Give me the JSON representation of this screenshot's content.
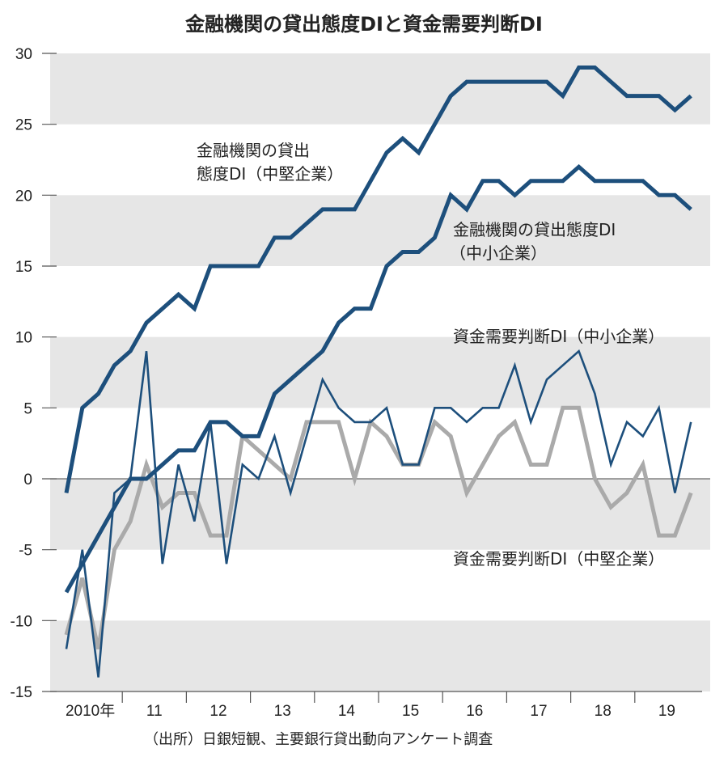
{
  "chart_data": {
    "type": "line",
    "title": "金融機関の貸出態度DIと資金需要判断DI",
    "source": "（出所）日銀短観、主要銀行貸出動向アンケート調査",
    "ylim": [
      -15,
      30
    ],
    "yticks": [
      "30",
      "25",
      "20",
      "15",
      "10",
      "5",
      "0",
      "-5",
      "-10",
      "-15"
    ],
    "ytick_values": [
      30,
      25,
      20,
      15,
      10,
      5,
      0,
      -5,
      -10,
      -15
    ],
    "xticks": [
      "2010年",
      "11",
      "12",
      "13",
      "14",
      "15",
      "16",
      "17",
      "18",
      "19"
    ],
    "x_unit": "quarter, 2010Q1–2019Q4",
    "grid": "alternating horizontal bands",
    "colors": {
      "blue": "#1d4f7c",
      "gray": "#aaaaaa",
      "band": "#e6e6e6"
    },
    "series": [
      {
        "name": "金融機関の貸出態度DI（中堅企業）",
        "label_lines": [
          "金融機関の貸出",
          "態度DI（中堅企業）"
        ],
        "color": "#1d4f7c",
        "weight": "thick",
        "values": [
          -1,
          5,
          6,
          8,
          9,
          11,
          12,
          13,
          12,
          15,
          15,
          15,
          15,
          17,
          17,
          18,
          19,
          19,
          19,
          21,
          23,
          24,
          23,
          25,
          27,
          28,
          28,
          28,
          28,
          28,
          28,
          27,
          29,
          29,
          28,
          27,
          27,
          27,
          26,
          27
        ]
      },
      {
        "name": "金融機関の貸出態度DI（中小企業）",
        "label_lines": [
          "金融機関の貸出態度DI",
          "（中小企業）"
        ],
        "color": "#1d4f7c",
        "weight": "thick",
        "values": [
          -8,
          -6,
          -4,
          -2,
          0,
          0,
          1,
          2,
          2,
          4,
          4,
          3,
          3,
          6,
          7,
          8,
          9,
          11,
          12,
          12,
          15,
          16,
          16,
          17,
          20,
          19,
          21,
          21,
          20,
          21,
          21,
          21,
          22,
          21,
          21,
          21,
          21,
          20,
          20,
          19
        ]
      },
      {
        "name": "資金需要判断DI（中小企業）",
        "label_lines": [
          "資金需要判断DI（中小企業）"
        ],
        "color": "#1d4f7c",
        "weight": "thin",
        "values": [
          -12,
          -5,
          -14,
          -1,
          0,
          9,
          -6,
          1,
          -3,
          4,
          -6,
          1,
          0,
          3,
          -1,
          3,
          7,
          5,
          4,
          4,
          5,
          1,
          1,
          5,
          5,
          4,
          5,
          5,
          8,
          4,
          7,
          8,
          9,
          6,
          1,
          4,
          3,
          5,
          -1,
          4
        ]
      },
      {
        "name": "資金需要判断DI（中堅企業）",
        "label_lines": [
          "資金需要判断DI（中堅企業）"
        ],
        "color": "#aaaaaa",
        "weight": "thick",
        "values": [
          -11,
          -7,
          -12,
          -5,
          -3,
          1,
          -2,
          -1,
          -1,
          -4,
          -4,
          3,
          2,
          1,
          0,
          4,
          4,
          4,
          0,
          4,
          3,
          1,
          1,
          4,
          3,
          -1,
          1,
          3,
          4,
          1,
          1,
          5,
          5,
          0,
          -2,
          -1,
          1,
          -4,
          -4,
          -1
        ]
      }
    ]
  }
}
